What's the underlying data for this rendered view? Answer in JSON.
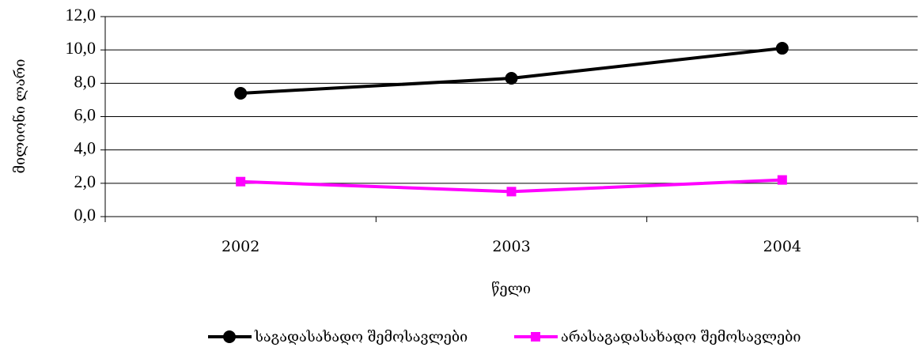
{
  "chart_data": {
    "type": "line",
    "categories": [
      "2002",
      "2003",
      "2004"
    ],
    "series": [
      {
        "name": "საგადასახადო შემოსავლები",
        "values": [
          7.4,
          8.3,
          10.1
        ],
        "color": "#000000",
        "marker": "circle"
      },
      {
        "name": "არასაგადასახადო შემოსავლები",
        "values": [
          2.1,
          1.5,
          2.2
        ],
        "color": "#ff00ff",
        "marker": "square"
      }
    ],
    "yticks": [
      "0,0",
      "2,0",
      "4,0",
      "6,0",
      "8,0",
      "10,0",
      "12,0"
    ],
    "ylim": [
      0,
      12
    ],
    "xlabel": "წელი",
    "ylabel": "მილიონი ლარი",
    "grid": "horizontal",
    "legend_position": "bottom"
  }
}
